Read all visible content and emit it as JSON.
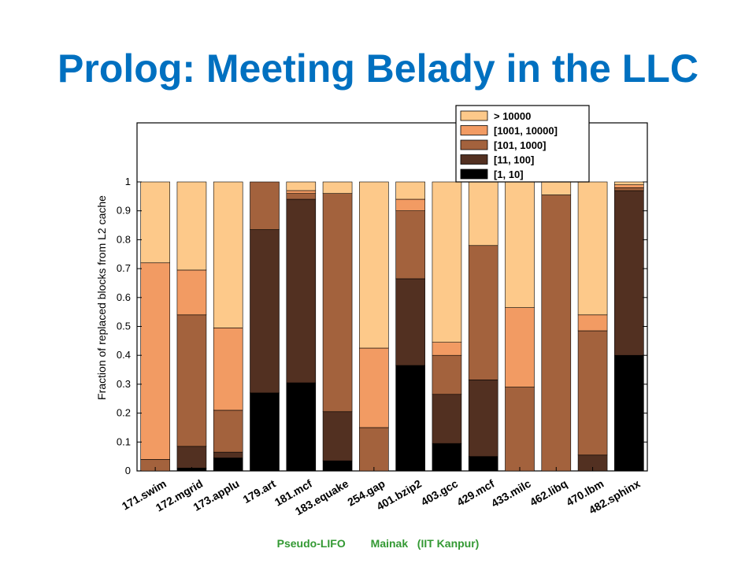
{
  "slide": {
    "title": "Prolog: Meeting Belady in the LLC",
    "footer_left": "Pseudo-LIFO",
    "footer_right": "Mainak   (IIT Kanpur)"
  },
  "colors": {
    "title": "#0070c0",
    "footer": "#339933",
    "s_gt10000": "#fdc98a",
    "s_1001_10000": "#f29b63",
    "s_101_1000": "#a3623d",
    "s_11_100": "#523021",
    "s_1_10": "#000000"
  },
  "chart_data": {
    "type": "bar",
    "stacked": true,
    "ylabel": "Fraction of replaced blocks from L2 cache",
    "xlabel": "",
    "ylim": [
      0,
      1
    ],
    "yticks": [
      "0",
      "0.1",
      "0.2",
      "0.3",
      "0.4",
      "0.5",
      "0.6",
      "0.7",
      "0.8",
      "0.9",
      "1"
    ],
    "grid": false,
    "legend_position": "top-right",
    "categories": [
      "171.swim",
      "172.mgrid",
      "173.applu",
      "179.art",
      "181.mcf",
      "183.equake",
      "254.gap",
      "401.bzip2",
      "403.gcc",
      "429.mcf",
      "433.milc",
      "462.libq",
      "470.lbm",
      "482.sphinx"
    ],
    "series": [
      {
        "name": "[1, 10]",
        "color_key": "s_1_10",
        "values": [
          0.0,
          0.01,
          0.045,
          0.27,
          0.305,
          0.035,
          0.0,
          0.365,
          0.095,
          0.05,
          0.0,
          0.0,
          0.0,
          0.4
        ]
      },
      {
        "name": "[11, 100]",
        "color_key": "s_11_100",
        "values": [
          0.0,
          0.075,
          0.02,
          0.565,
          0.635,
          0.17,
          0.0,
          0.3,
          0.17,
          0.265,
          0.0,
          0.0,
          0.055,
          0.57
        ]
      },
      {
        "name": "[101, 1000]",
        "color_key": "s_101_1000",
        "values": [
          0.04,
          0.455,
          0.145,
          0.165,
          0.02,
          0.755,
          0.15,
          0.235,
          0.135,
          0.465,
          0.29,
          0.955,
          0.43,
          0.01
        ]
      },
      {
        "name": "[1001, 10000]",
        "color_key": "s_1001_10000",
        "values": [
          0.68,
          0.155,
          0.285,
          0.0,
          0.01,
          0.0,
          0.275,
          0.04,
          0.045,
          0.0,
          0.275,
          0.0,
          0.055,
          0.01
        ]
      },
      {
        "name": "> 10000",
        "color_key": "s_gt10000",
        "values": [
          0.28,
          0.305,
          0.505,
          0.0,
          0.03,
          0.04,
          0.575,
          0.06,
          0.555,
          0.22,
          0.435,
          0.045,
          0.46,
          0.01
        ]
      }
    ],
    "legend_order": [
      "> 10000",
      "[1001, 10000]",
      "[101, 1000]",
      "[11, 100]",
      "[1, 10]"
    ]
  }
}
